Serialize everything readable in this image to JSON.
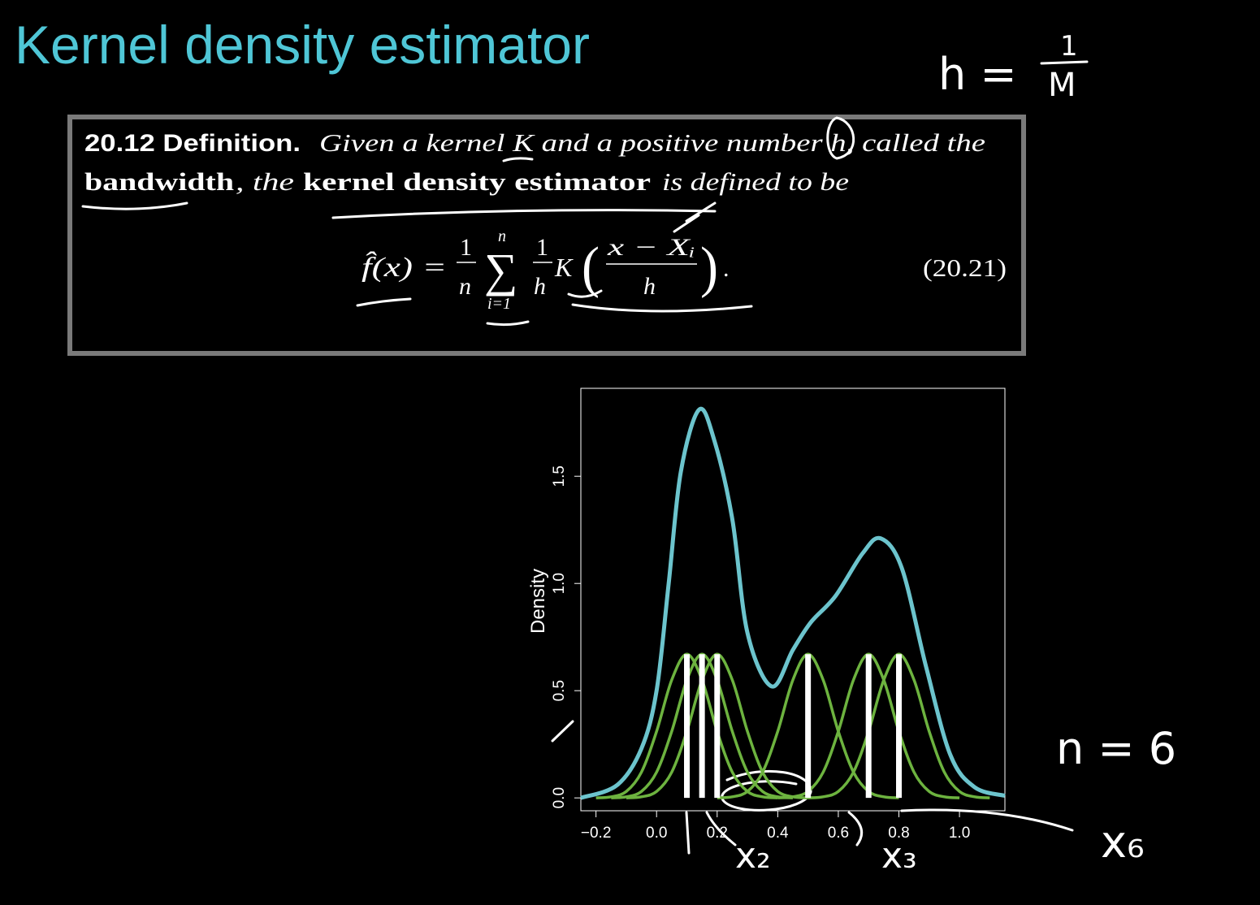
{
  "title": "Kernel density estimator",
  "annotations": {
    "h_eq": "h =",
    "h_num": "1",
    "h_den": "M",
    "n_eq": "n = 6",
    "x2": "x₂",
    "x3": "x₃",
    "x6": "x₆"
  },
  "definition": {
    "label": "20.12 Definition.",
    "line1": "Given a kernel K and a positive number h, called the",
    "term1": "bandwidth",
    "mid": ", the",
    "term2": "kernel density estimator",
    "end": "is defined to be",
    "formula": {
      "lhs": "f̂(x) =",
      "frac_num": "1",
      "frac_den": "n",
      "sum": "∑",
      "sum_top": "n",
      "sum_bottom": "i=1",
      "inner_num": "1",
      "inner_den": "h",
      "kernel": "K",
      "open": "(",
      "arg_num": "x − Xᵢ",
      "arg_den": "h",
      "close": ")",
      "period": ".",
      "number": "(20.21)"
    }
  },
  "chart_data": {
    "type": "line",
    "ylabel": "Density",
    "xlim": [
      -0.25,
      1.15
    ],
    "ylim": [
      -0.06,
      1.91
    ],
    "xticks": [
      {
        "value": -0.2,
        "label": "−0.2"
      },
      {
        "value": 0,
        "label": "0.0"
      },
      0.2,
      0.4,
      0.6,
      0.8,
      {
        "value": 1,
        "label": "1.0"
      }
    ],
    "yticks": [
      {
        "value": 0,
        "label": "0.0"
      },
      {
        "value": 0.5,
        "label": "0.5"
      },
      {
        "value": 1,
        "label": "1.0"
      },
      {
        "value": 1.5,
        "label": "1.5"
      }
    ],
    "series": [
      {
        "color": "#6cc4cd",
        "x": [
          -0.25,
          -0.13,
          -0.05,
          0,
          0.04,
          0.08,
          0.14,
          0.19,
          0.25,
          0.3,
          0.38,
          0.45,
          0.51,
          0.59,
          0.68,
          0.74,
          0.81,
          0.89,
          0.97,
          1.05,
          1.15
        ],
        "values": [
          0,
          0.06,
          0.23,
          0.5,
          1,
          1.52,
          1.81,
          1.67,
          1.3,
          0.77,
          0.52,
          0.69,
          0.82,
          0.94,
          1.14,
          1.21,
          1.07,
          0.61,
          0.2,
          0.05,
          0.01
        ]
      },
      {
        "color": "#6db33f",
        "x": [
          -0.2,
          -0.15,
          -0.1,
          -0.05,
          0,
          0.05,
          0.1,
          0.15,
          0.2,
          0.25,
          0.3,
          0.35,
          0.4
        ],
        "values": [
          0,
          0.005,
          0.03,
          0.12,
          0.31,
          0.55,
          0.67,
          0.55,
          0.31,
          0.12,
          0.03,
          0.005,
          0
        ]
      },
      {
        "color": "#6db33f",
        "x": [
          -0.15,
          -0.1,
          -0.05,
          0,
          0.05,
          0.1,
          0.15,
          0.2,
          0.25,
          0.3,
          0.35,
          0.4,
          0.45
        ],
        "values": [
          0,
          0.005,
          0.03,
          0.12,
          0.31,
          0.55,
          0.67,
          0.55,
          0.31,
          0.12,
          0.03,
          0.005,
          0
        ]
      },
      {
        "color": "#6db33f",
        "x": [
          -0.1,
          -0.05,
          0,
          0.05,
          0.1,
          0.15,
          0.2,
          0.25,
          0.3,
          0.35,
          0.4,
          0.45,
          0.5
        ],
        "values": [
          0,
          0.005,
          0.03,
          0.12,
          0.31,
          0.55,
          0.67,
          0.55,
          0.31,
          0.12,
          0.03,
          0.005,
          0
        ]
      },
      {
        "color": "#6db33f",
        "x": [
          0.2,
          0.25,
          0.3,
          0.35,
          0.4,
          0.45,
          0.5,
          0.55,
          0.6,
          0.65,
          0.7,
          0.75,
          0.8
        ],
        "values": [
          0,
          0.005,
          0.03,
          0.12,
          0.31,
          0.55,
          0.67,
          0.55,
          0.31,
          0.12,
          0.03,
          0.005,
          0
        ]
      },
      {
        "color": "#6db33f",
        "x": [
          0.4,
          0.45,
          0.5,
          0.55,
          0.6,
          0.65,
          0.7,
          0.75,
          0.8,
          0.85,
          0.9,
          0.95,
          1.0
        ],
        "values": [
          0,
          0.005,
          0.03,
          0.12,
          0.31,
          0.55,
          0.67,
          0.55,
          0.31,
          0.12,
          0.03,
          0.005,
          0
        ]
      },
      {
        "color": "#6db33f",
        "x": [
          0.5,
          0.55,
          0.6,
          0.65,
          0.7,
          0.75,
          0.8,
          0.85,
          0.9,
          0.95,
          1.0,
          1.05,
          1.1
        ],
        "values": [
          0,
          0.005,
          0.03,
          0.12,
          0.31,
          0.55,
          0.67,
          0.55,
          0.31,
          0.12,
          0.03,
          0.005,
          0
        ]
      }
    ],
    "samples": [
      0.1,
      0.15,
      0.2,
      0.5,
      0.7,
      0.8
    ],
    "sample_color": "#ffffff"
  }
}
